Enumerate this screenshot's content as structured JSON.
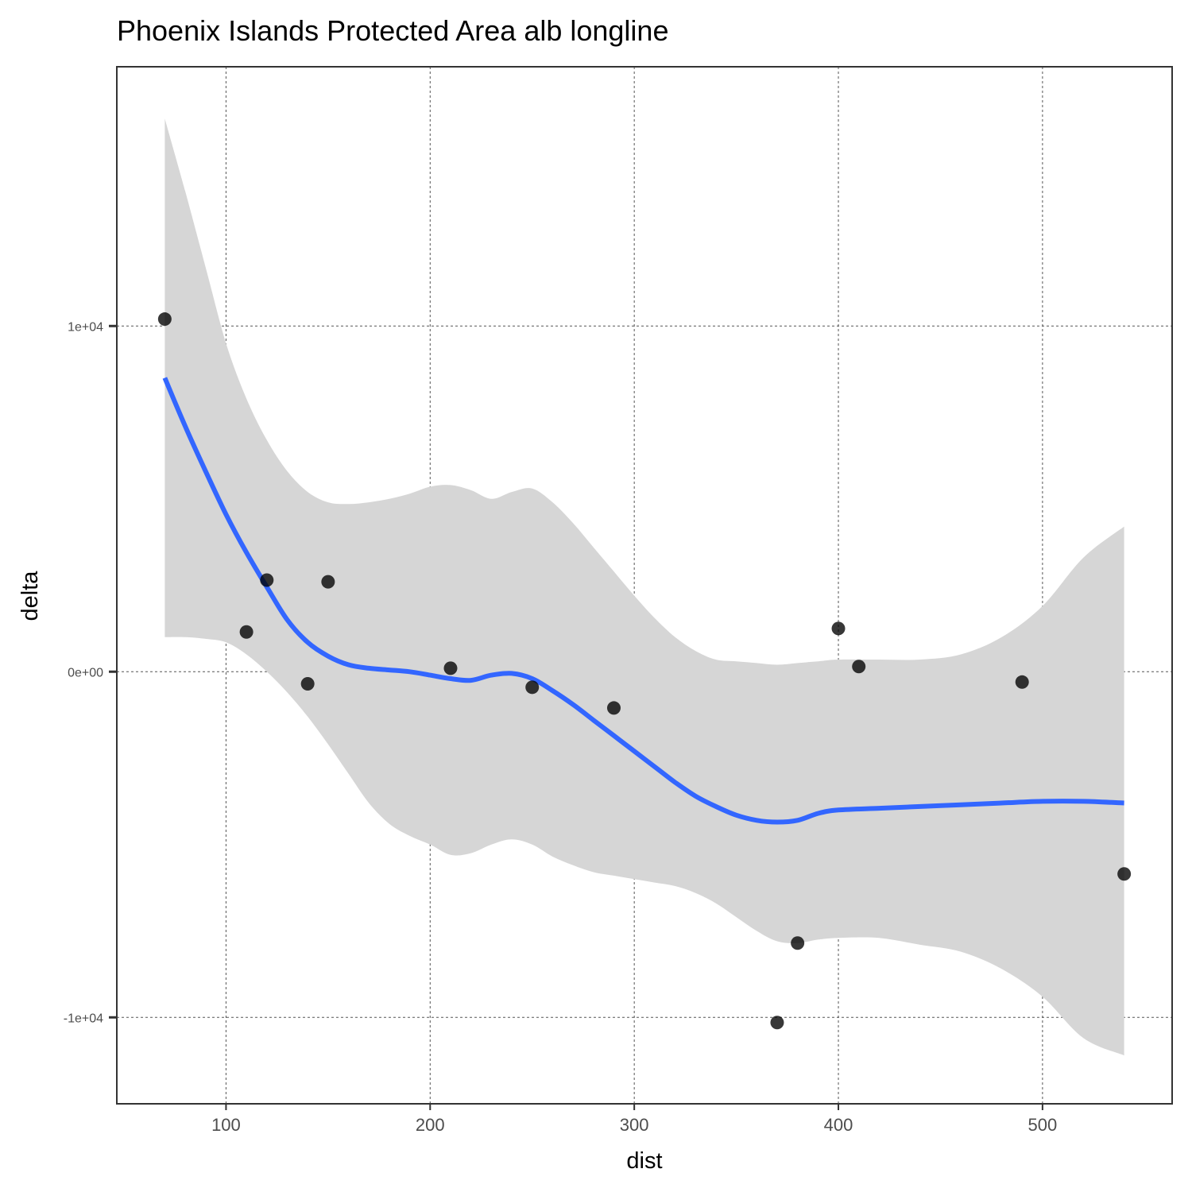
{
  "chart_data": {
    "type": "scatter",
    "title": "Phoenix Islands Protected Area alb longline",
    "xlabel": "dist",
    "ylabel": "delta",
    "xlim": [
      46.5,
      563.5
    ],
    "ylim": [
      -12500,
      17500
    ],
    "x_ticks": [
      100,
      200,
      300,
      400,
      500
    ],
    "x_tick_labels": [
      "100",
      "200",
      "300",
      "400",
      "500"
    ],
    "y_ticks": [
      -10000,
      0,
      10000
    ],
    "y_tick_labels": [
      "-1e+04",
      "0e+00",
      "1e+04"
    ],
    "grid": true,
    "points": [
      {
        "x": 70,
        "y": 10200
      },
      {
        "x": 110,
        "y": 1150
      },
      {
        "x": 120,
        "y": 2650
      },
      {
        "x": 140,
        "y": -350
      },
      {
        "x": 150,
        "y": 2600
      },
      {
        "x": 210,
        "y": 100
      },
      {
        "x": 250,
        "y": -450
      },
      {
        "x": 290,
        "y": -1050
      },
      {
        "x": 370,
        "y": -10150
      },
      {
        "x": 380,
        "y": -7850
      },
      {
        "x": 400,
        "y": 1250
      },
      {
        "x": 410,
        "y": 150
      },
      {
        "x": 490,
        "y": -300
      },
      {
        "x": 540,
        "y": -5850
      }
    ],
    "smooth": {
      "color": "#3366ff",
      "band_color": "#d6d6d6",
      "x": [
        70,
        80,
        90,
        100,
        110,
        120,
        130,
        140,
        150,
        160,
        170,
        180,
        190,
        200,
        210,
        220,
        230,
        240,
        250,
        260,
        270,
        280,
        290,
        300,
        310,
        320,
        330,
        340,
        350,
        360,
        370,
        380,
        390,
        400,
        420,
        440,
        460,
        480,
        500,
        520,
        540
      ],
      "fit": [
        8500,
        7100,
        5800,
        4550,
        3450,
        2450,
        1500,
        850,
        450,
        200,
        100,
        50,
        0,
        -100,
        -200,
        -250,
        -100,
        -50,
        -200,
        -550,
        -950,
        -1400,
        -1850,
        -2300,
        -2750,
        -3200,
        -3600,
        -3900,
        -4150,
        -4300,
        -4350,
        -4300,
        -4100,
        -4000,
        -3950,
        -3900,
        -3850,
        -3800,
        -3750,
        -3750,
        -3800
      ],
      "lower": [
        1000,
        1000,
        950,
        850,
        500,
        0,
        -600,
        -1300,
        -2100,
        -2950,
        -3800,
        -4400,
        -4750,
        -5000,
        -5300,
        -5250,
        -5000,
        -4850,
        -5000,
        -5350,
        -5600,
        -5800,
        -5900,
        -6000,
        -6100,
        -6200,
        -6400,
        -6700,
        -7100,
        -7500,
        -7800,
        -7850,
        -7750,
        -7700,
        -7700,
        -7900,
        -8100,
        -8600,
        -9400,
        -10600,
        -11100
      ],
      "upper": [
        16000,
        13900,
        11700,
        9500,
        7900,
        6700,
        5800,
        5200,
        4900,
        4850,
        4900,
        5000,
        5150,
        5350,
        5400,
        5250,
        5000,
        5200,
        5300,
        4900,
        4300,
        3600,
        2900,
        2200,
        1550,
        1000,
        600,
        350,
        300,
        250,
        200,
        250,
        300,
        350,
        350,
        350,
        500,
        1000,
        1900,
        3300,
        4200
      ]
    }
  }
}
